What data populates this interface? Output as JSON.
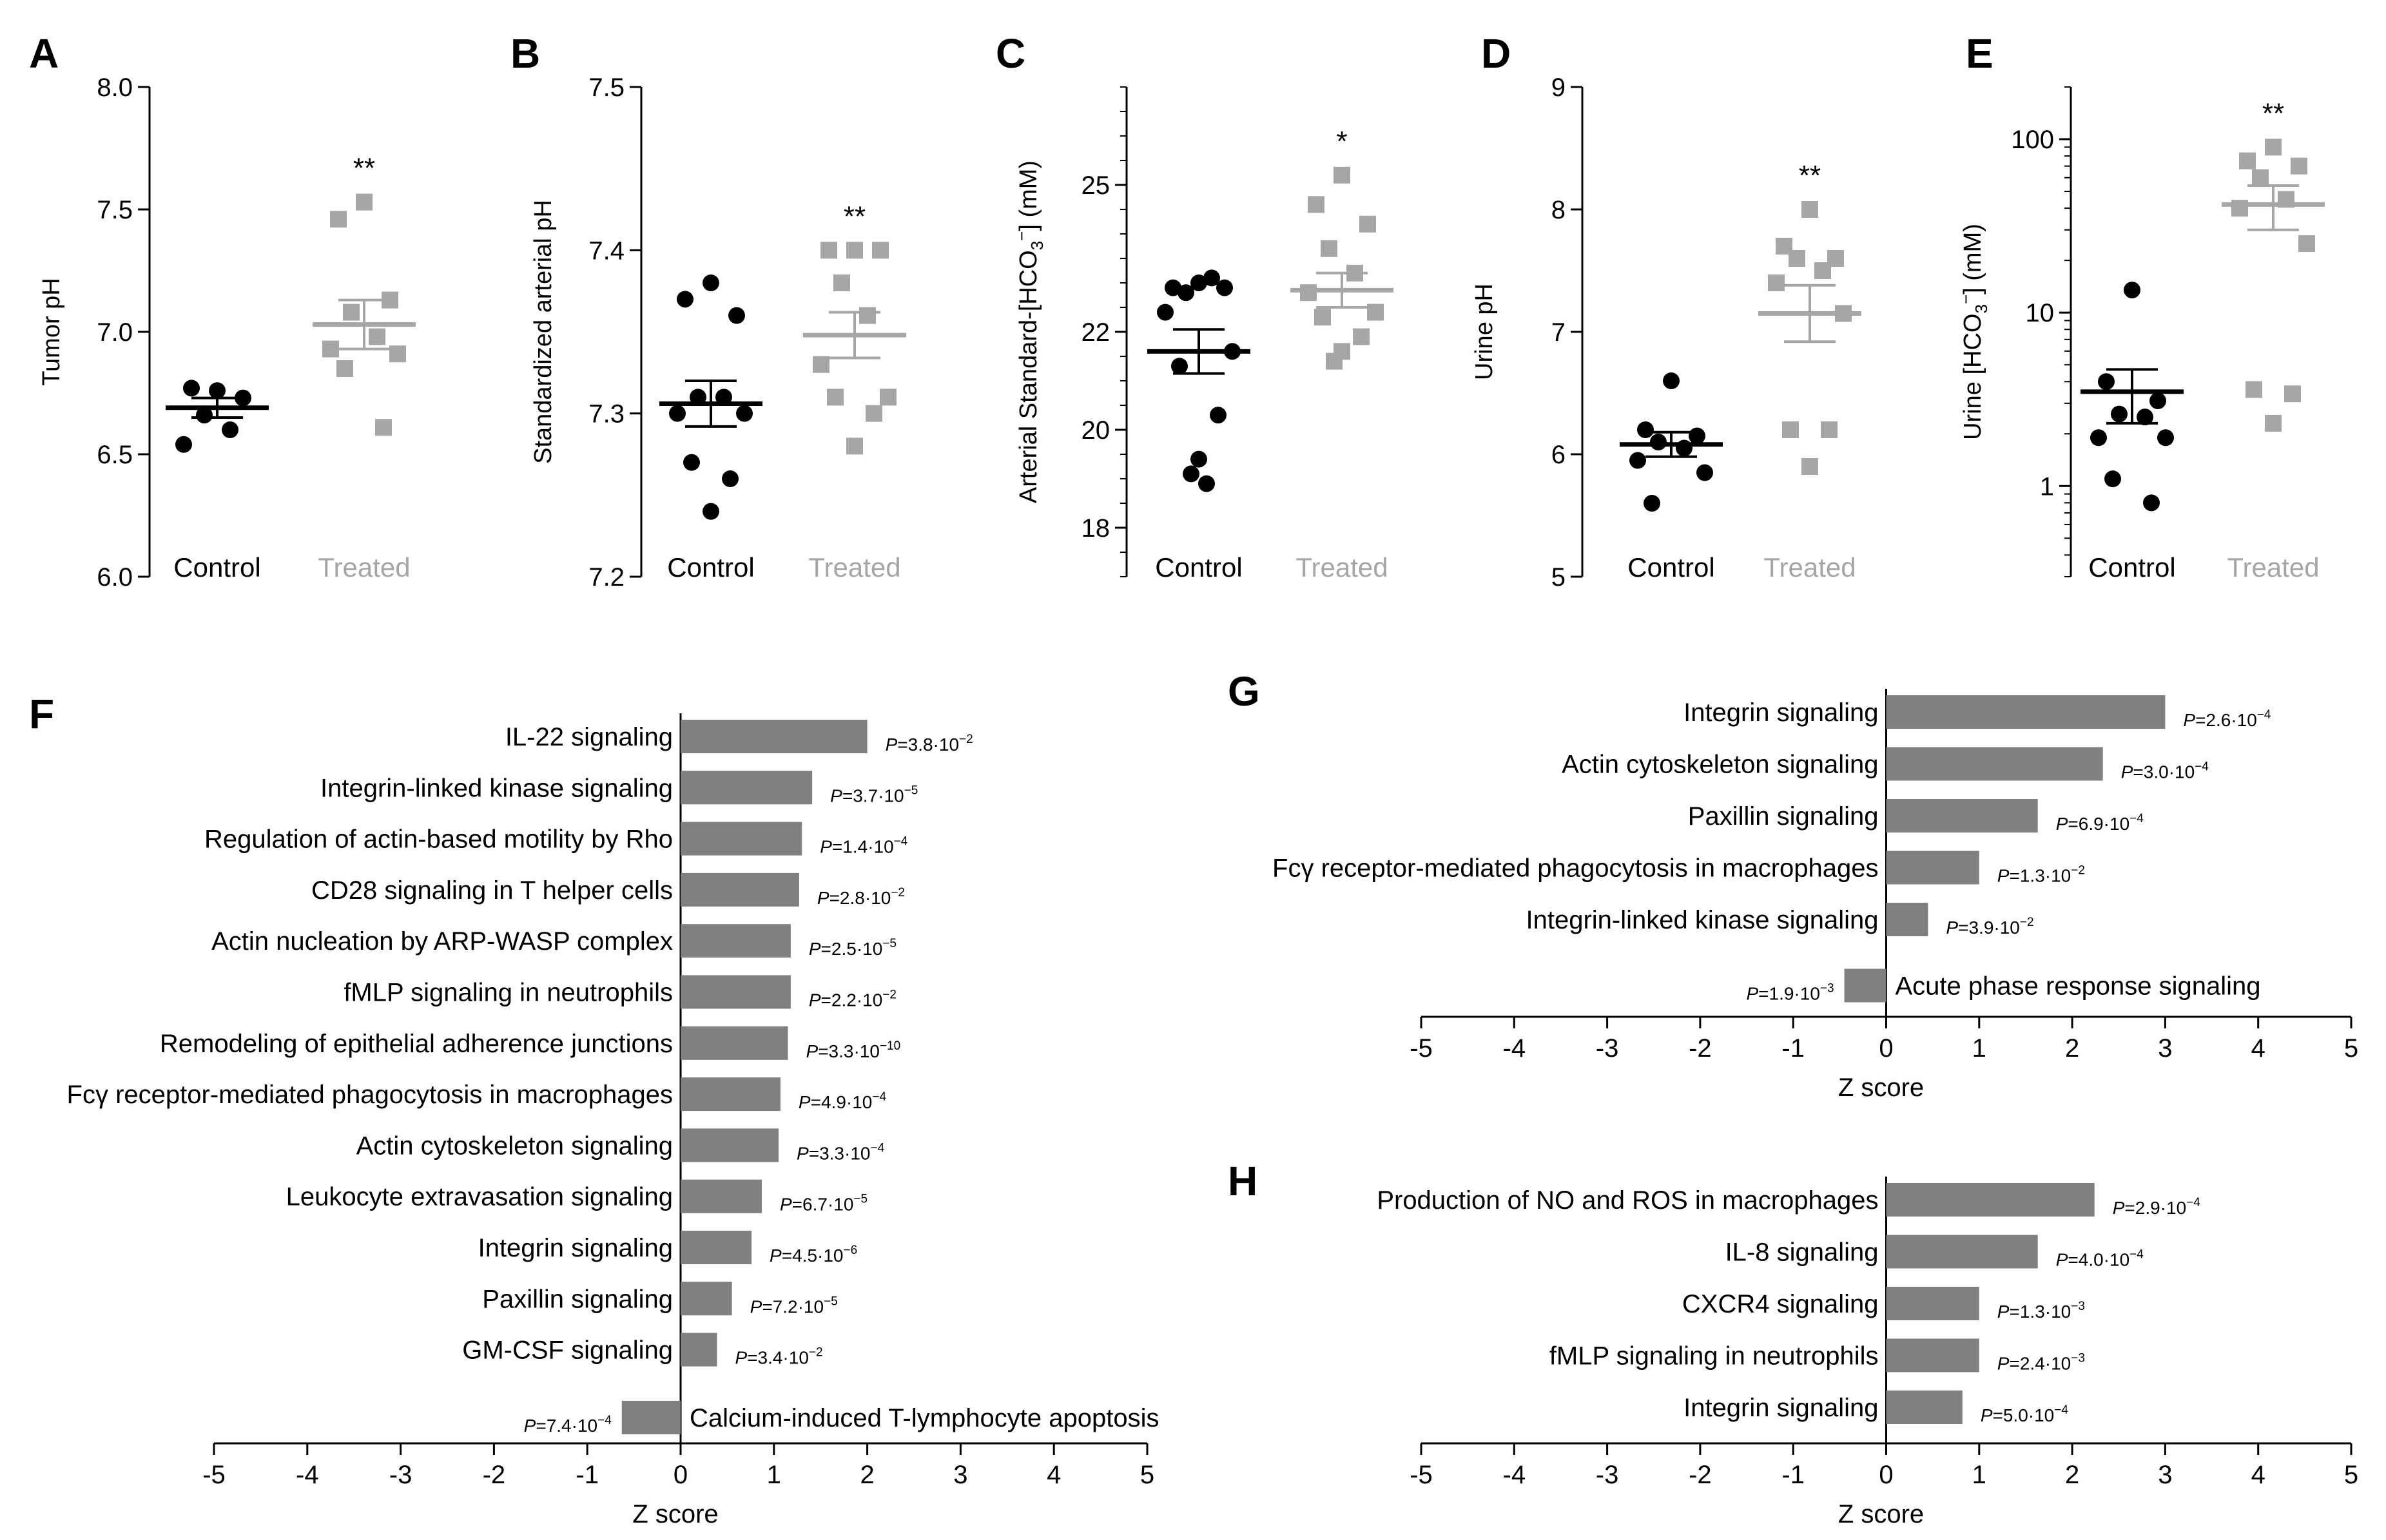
{
  "colors": {
    "control": "#000000",
    "treated": "#a6a6a6",
    "bar": "#808080",
    "axis": "#000000"
  },
  "chart_data": [
    {
      "panel": "A",
      "type": "scatter",
      "ylabel": "Tumor pH",
      "scale": "linear",
      "ylim": [
        6.0,
        8.0
      ],
      "yticks": [
        6.0,
        6.5,
        7.0,
        7.5,
        8.0
      ],
      "ytick_labels": [
        "6.0",
        "6.5",
        "7.0",
        "7.5",
        "8.0"
      ],
      "categories": [
        "Control",
        "Treated"
      ],
      "series": [
        {
          "name": "Control",
          "values": [
            6.76,
            6.77,
            6.73,
            6.66,
            6.6,
            6.54
          ],
          "mean": 6.69,
          "sem": 0.04
        },
        {
          "name": "Treated",
          "values": [
            7.53,
            7.46,
            7.13,
            7.08,
            6.98,
            6.93,
            6.91,
            6.85,
            6.61
          ],
          "mean": 7.03,
          "sem": 0.1
        }
      ],
      "annotation": "**"
    },
    {
      "panel": "B",
      "type": "scatter",
      "ylabel": "Standardized arterial pH",
      "scale": "linear",
      "ylim": [
        7.2,
        7.5
      ],
      "yticks": [
        7.2,
        7.3,
        7.4,
        7.5
      ],
      "ytick_labels": [
        "7.2",
        "7.3",
        "7.4",
        "7.5"
      ],
      "categories": [
        "Control",
        "Treated"
      ],
      "series": [
        {
          "name": "Control",
          "values": [
            7.38,
            7.37,
            7.36,
            7.31,
            7.31,
            7.3,
            7.3,
            7.27,
            7.26,
            7.24
          ],
          "mean": 7.306,
          "sem": 0.014
        },
        {
          "name": "Treated",
          "values": [
            7.4,
            7.4,
            7.4,
            7.38,
            7.36,
            7.33,
            7.31,
            7.31,
            7.3,
            7.28
          ],
          "mean": 7.348,
          "sem": 0.014
        }
      ],
      "annotation": "**"
    },
    {
      "panel": "C",
      "type": "scatter",
      "ylabel": "Arterial Standard-[HCO3−] (mM)",
      "ylabel_main": "Arterial Standard-[HCO",
      "ylabel_sub": "3",
      "ylabel_sup": "−",
      "ylabel_end": "] (mM)",
      "scale": "linear",
      "ylim": [
        17.0,
        27.0
      ],
      "yticks": [
        18,
        20,
        22,
        25
      ],
      "ytick_labels": [
        "18",
        "20",
        "22",
        "25"
      ],
      "categories": [
        "Control",
        "Treated"
      ],
      "series": [
        {
          "name": "Control",
          "values": [
            23.0,
            22.9,
            22.9,
            22.8,
            23.1,
            22.4,
            21.6,
            21.3,
            20.3,
            19.4,
            19.1,
            18.9
          ],
          "mean": 21.6,
          "sem": 0.45
        },
        {
          "name": "Treated",
          "values": [
            25.2,
            24.6,
            24.2,
            23.7,
            23.2,
            22.8,
            22.4,
            22.3,
            21.9,
            21.6,
            21.4
          ],
          "mean": 22.85,
          "sem": 0.35
        }
      ],
      "annotation": "*"
    },
    {
      "panel": "D",
      "type": "scatter",
      "ylabel": "Urine pH",
      "scale": "linear",
      "ylim": [
        5,
        9
      ],
      "yticks": [
        5,
        6,
        7,
        8,
        9
      ],
      "ytick_labels": [
        "5",
        "6",
        "7",
        "8",
        "9"
      ],
      "categories": [
        "Control",
        "Treated"
      ],
      "series": [
        {
          "name": "Control",
          "values": [
            6.6,
            6.2,
            6.15,
            6.1,
            6.05,
            5.95,
            5.85,
            5.6
          ],
          "mean": 6.08,
          "sem": 0.1
        },
        {
          "name": "Treated",
          "values": [
            8.0,
            7.7,
            7.6,
            7.6,
            7.5,
            7.4,
            7.15,
            6.2,
            6.2,
            5.9
          ],
          "mean": 7.15,
          "sem": 0.23
        }
      ],
      "annotation": "**"
    },
    {
      "panel": "E",
      "type": "scatter",
      "ylabel": "Urine [HCO3−] (mM)",
      "ylabel_main": "Urine [HCO",
      "ylabel_sub": "3",
      "ylabel_sup": "−",
      "ylabel_end": "] (mM)",
      "scale": "log",
      "ylim": [
        0.3,
        200
      ],
      "yticks": [
        1,
        10,
        100
      ],
      "ytick_labels": [
        "1",
        "10",
        "100"
      ],
      "categories": [
        "Control",
        "Treated"
      ],
      "series": [
        {
          "name": "Control",
          "values": [
            13.5,
            4.0,
            3.1,
            2.6,
            2.5,
            1.9,
            1.9,
            1.1,
            0.8
          ],
          "mean": 3.5,
          "sem": 1.2
        },
        {
          "name": "Treated",
          "values": [
            90,
            75,
            70,
            60,
            45,
            40,
            25,
            3.6,
            3.4,
            2.3
          ],
          "mean": 42,
          "sem": 12
        }
      ],
      "annotation": "**"
    },
    {
      "panel": "F",
      "type": "bar",
      "orientation": "horizontal",
      "xlabel": "Z score",
      "xlim": [
        -5,
        5
      ],
      "xticks": [
        -5,
        -4,
        -3,
        -2,
        -1,
        0,
        1,
        2,
        3,
        4,
        5
      ],
      "xtick_labels": [
        "-5",
        "-4",
        "-3",
        "-2",
        "-1",
        "0",
        "1",
        "2",
        "3",
        "4",
        "5"
      ],
      "categories": [
        "IL-22 signaling",
        "Integrin-linked kinase signaling",
        "Regulation of actin-based motility by Rho",
        "CD28 signaling in T helper cells",
        "Actin nucleation by ARP-WASP complex",
        "fMLP signaling in neutrophils",
        "Remodeling of epithelial adherence junctions",
        "Fcγ receptor-mediated phagocytosis in macrophages",
        "Actin cytoskeleton signaling",
        "Leukocyte extravasation signaling",
        "Integrin signaling",
        "Paxillin signaling",
        "GM-CSF signaling",
        "Calcium-induced T-lymphocyte apoptosis"
      ],
      "values": [
        2.0,
        1.41,
        1.3,
        1.27,
        1.18,
        1.18,
        1.15,
        1.07,
        1.05,
        0.87,
        0.76,
        0.55,
        0.39,
        -0.63
      ],
      "p_mantissa": [
        "3.8",
        "3.7",
        "1.4",
        "2.8",
        "2.5",
        "2.2",
        "3.3",
        "4.9",
        "3.3",
        "6.7",
        "4.5",
        "7.2",
        "3.4",
        "7.4"
      ],
      "p_exponent": [
        "−2",
        "−5",
        "−4",
        "−2",
        "−5",
        "−2",
        "−10",
        "−4",
        "−4",
        "−5",
        "−6",
        "−5",
        "−2",
        "−4"
      ]
    },
    {
      "panel": "G",
      "type": "bar",
      "orientation": "horizontal",
      "xlabel": "Z score",
      "xlim": [
        -5,
        5
      ],
      "xticks": [
        -5,
        -4,
        -3,
        -2,
        -1,
        0,
        1,
        2,
        3,
        4,
        5
      ],
      "xtick_labels": [
        "-5",
        "-4",
        "-3",
        "-2",
        "-1",
        "0",
        "1",
        "2",
        "3",
        "4",
        "5"
      ],
      "categories": [
        "Integrin signaling",
        "Actin cytoskeleton signaling",
        "Paxillin signaling",
        "Fcγ receptor-mediated phagocytosis in macrophages",
        "Integrin-linked kinase signaling",
        "Acute phase response signaling"
      ],
      "values": [
        3.0,
        2.33,
        1.63,
        1.0,
        0.45,
        -0.45
      ],
      "p_mantissa": [
        "2.6",
        "3.0",
        "6.9",
        "1.3",
        "3.9",
        "1.9"
      ],
      "p_exponent": [
        "−4",
        "−4",
        "−4",
        "−2",
        "−2",
        "−3"
      ]
    },
    {
      "panel": "H",
      "type": "bar",
      "orientation": "horizontal",
      "xlabel": "Z score",
      "xlim": [
        -5,
        5
      ],
      "xticks": [
        -5,
        -4,
        -3,
        -2,
        -1,
        0,
        1,
        2,
        3,
        4,
        5
      ],
      "xtick_labels": [
        "-5",
        "-4",
        "-3",
        "-2",
        "-1",
        "0",
        "1",
        "2",
        "3",
        "4",
        "5"
      ],
      "categories": [
        "Production of NO and ROS in macrophages",
        "IL-8 signaling",
        "CXCR4 signaling",
        "fMLP signaling in neutrophils",
        "Integrin signaling"
      ],
      "values": [
        2.24,
        1.63,
        1.0,
        1.0,
        0.82
      ],
      "p_mantissa": [
        "2.9",
        "4.0",
        "1.3",
        "2.4",
        "5.0"
      ],
      "p_exponent": [
        "−4",
        "−4",
        "−3",
        "−3",
        "−4"
      ]
    }
  ]
}
